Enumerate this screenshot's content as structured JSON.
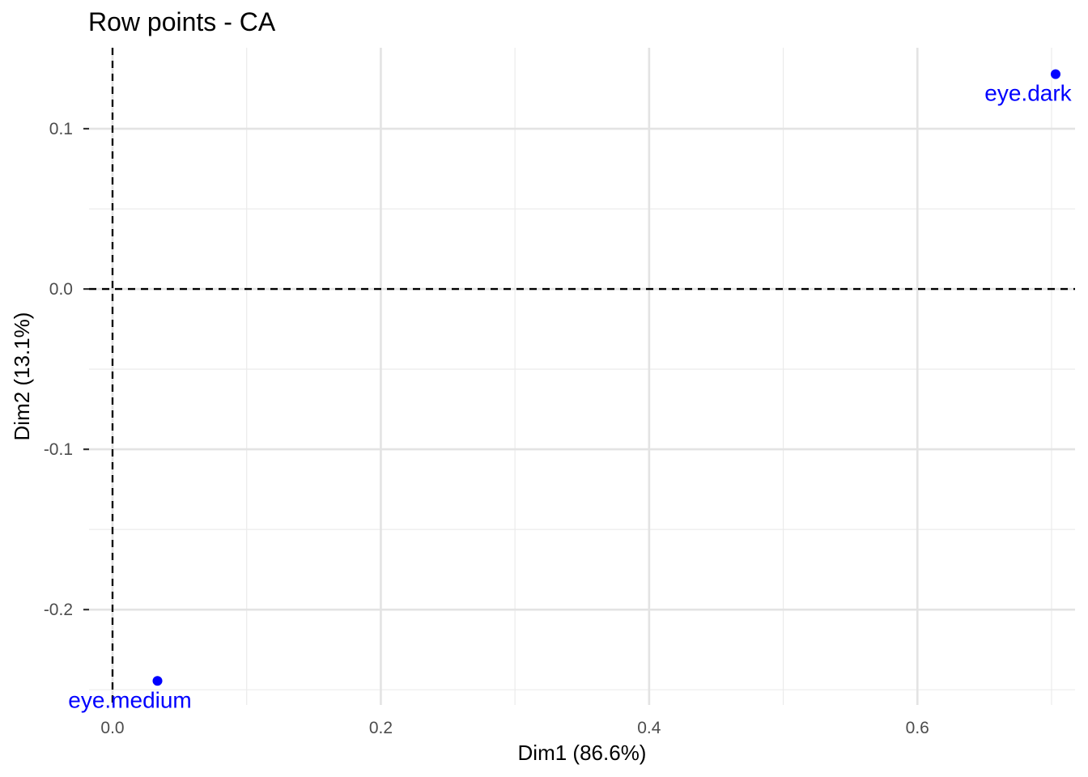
{
  "chart_data": {
    "type": "scatter",
    "title": "Row points - CA",
    "xlabel": "Dim1 (86.6%)",
    "ylabel": "Dim2 (13.1%)",
    "xlim": [
      -0.0175,
      0.7175
    ],
    "ylim": [
      -0.2595,
      0.1505
    ],
    "x_ticks": [
      0.0,
      0.2,
      0.4,
      0.6
    ],
    "x_tick_labels": [
      "0.0",
      "0.2",
      "0.4",
      "0.6"
    ],
    "x_minor": [
      0.1,
      0.3,
      0.5,
      0.7
    ],
    "y_ticks": [
      -0.2,
      -0.1,
      0.0,
      0.1
    ],
    "y_tick_labels": [
      "-0.2",
      "-0.1",
      "0.0",
      "0.1"
    ],
    "y_minor": [
      -0.25,
      -0.15,
      -0.05,
      0.05
    ],
    "reference_lines": {
      "x": 0,
      "y": 0,
      "style": "dashed"
    },
    "grid": true,
    "point_color": "#0000ff",
    "points": [
      {
        "label": "eye.dark",
        "x": 0.703,
        "y": 0.134
      },
      {
        "label": "eye.medium",
        "x": 0.0335,
        "y": -0.2445
      }
    ]
  }
}
